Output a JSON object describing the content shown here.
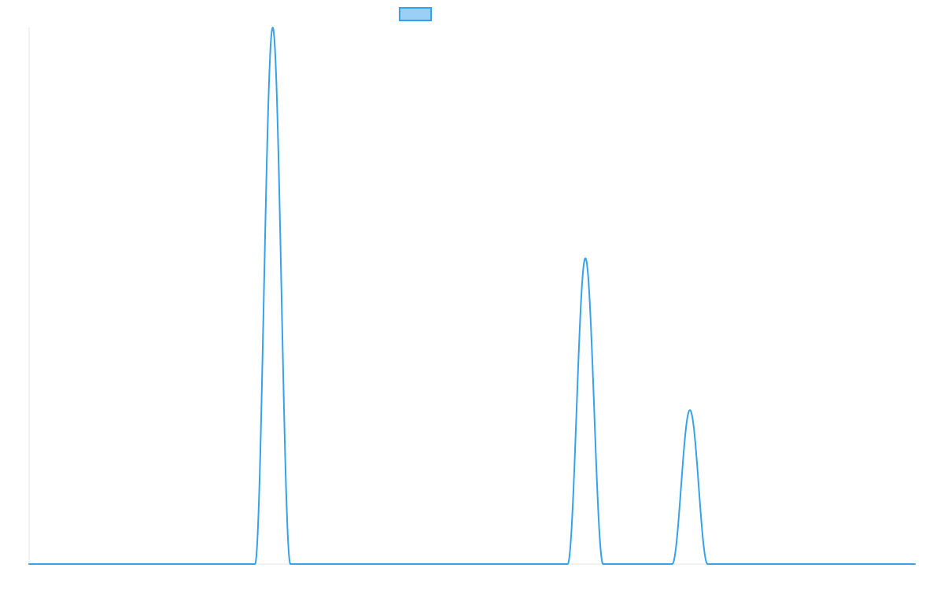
{
  "colors": {
    "series": "#36a2eb",
    "series_fill": "#9ad0f5",
    "axis": "#e6e6e6"
  },
  "chart_data": {
    "type": "line",
    "title": "",
    "xlabel": "",
    "ylabel": "",
    "xlim": [
      0,
      100
    ],
    "ylim": [
      0,
      1
    ],
    "grid": false,
    "legend": {
      "placement": "top-center",
      "entries": [
        {
          "name": "",
          "marker": "rectangle"
        }
      ]
    },
    "series": [
      {
        "name": "",
        "x": [
          0,
          25.5,
          27.5,
          29.5,
          60.8,
          62.8,
          64.8,
          72.6,
          74.6,
          76.6,
          100
        ],
        "y": [
          0,
          0,
          1.0,
          0,
          0,
          0.57,
          0,
          0,
          0.287,
          0,
          0
        ],
        "peaks": [
          {
            "x": 27.5,
            "y": 1.0,
            "width": 4.0
          },
          {
            "x": 62.8,
            "y": 0.57,
            "width": 4.0
          },
          {
            "x": 74.6,
            "y": 0.287,
            "width": 4.0
          }
        ]
      }
    ]
  }
}
